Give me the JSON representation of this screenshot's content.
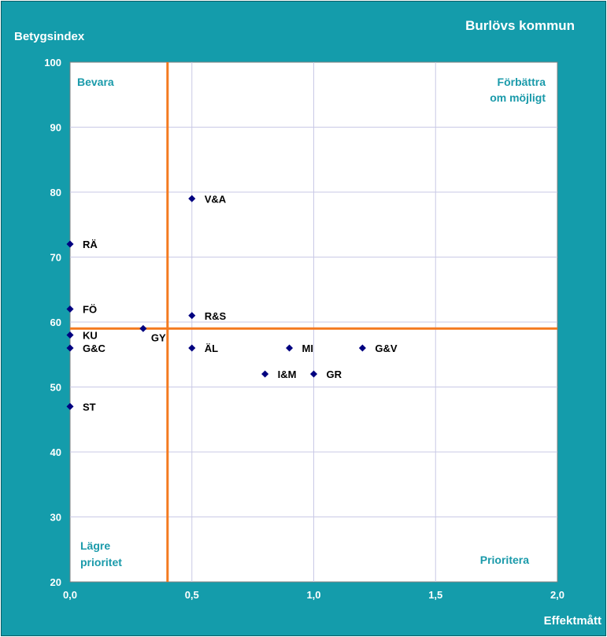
{
  "chart_data": {
    "type": "scatter",
    "title": "Burlövs kommun",
    "xlabel": "Effektmått",
    "ylabel": "Betygsindex",
    "xlim": [
      0,
      2
    ],
    "ylim": [
      20,
      100
    ],
    "x_ticks": [
      "0,0",
      "0,5",
      "1,0",
      "1,5",
      "2,0"
    ],
    "x_tick_values": [
      0,
      0.5,
      1,
      1.5,
      2
    ],
    "y_ticks": [
      "20",
      "30",
      "40",
      "50",
      "60",
      "70",
      "80",
      "90",
      "100"
    ],
    "y_tick_values": [
      20,
      30,
      40,
      50,
      60,
      70,
      80,
      90,
      100
    ],
    "grid": true,
    "reference_lines": {
      "x": 0.4,
      "y": 59,
      "color": "#f47a20"
    },
    "marker_color": "#000080",
    "quadrant_labels": {
      "top_left": "Bevara",
      "top_right_line1": "Förbättra",
      "top_right_line2": "om möjligt",
      "bottom_left_line1": "Lägre",
      "bottom_left_line2": "prioritet",
      "bottom_right": "Prioritera"
    },
    "points": [
      {
        "label": "V&A",
        "x": 0.5,
        "y": 79
      },
      {
        "label": "RÄ",
        "x": 0.0,
        "y": 72
      },
      {
        "label": "FÖ",
        "x": 0.0,
        "y": 62
      },
      {
        "label": "R&S",
        "x": 0.5,
        "y": 61
      },
      {
        "label": "GY",
        "x": 0.3,
        "y": 59
      },
      {
        "label": "KU",
        "x": 0.0,
        "y": 58
      },
      {
        "label": "G&C",
        "x": 0.0,
        "y": 56
      },
      {
        "label": "ÄL",
        "x": 0.5,
        "y": 56
      },
      {
        "label": "MI",
        "x": 0.9,
        "y": 56
      },
      {
        "label": "G&V",
        "x": 1.2,
        "y": 56
      },
      {
        "label": "I&M",
        "x": 0.8,
        "y": 52
      },
      {
        "label": "GR",
        "x": 1.0,
        "y": 52
      },
      {
        "label": "ST",
        "x": 0.0,
        "y": 47
      }
    ]
  }
}
